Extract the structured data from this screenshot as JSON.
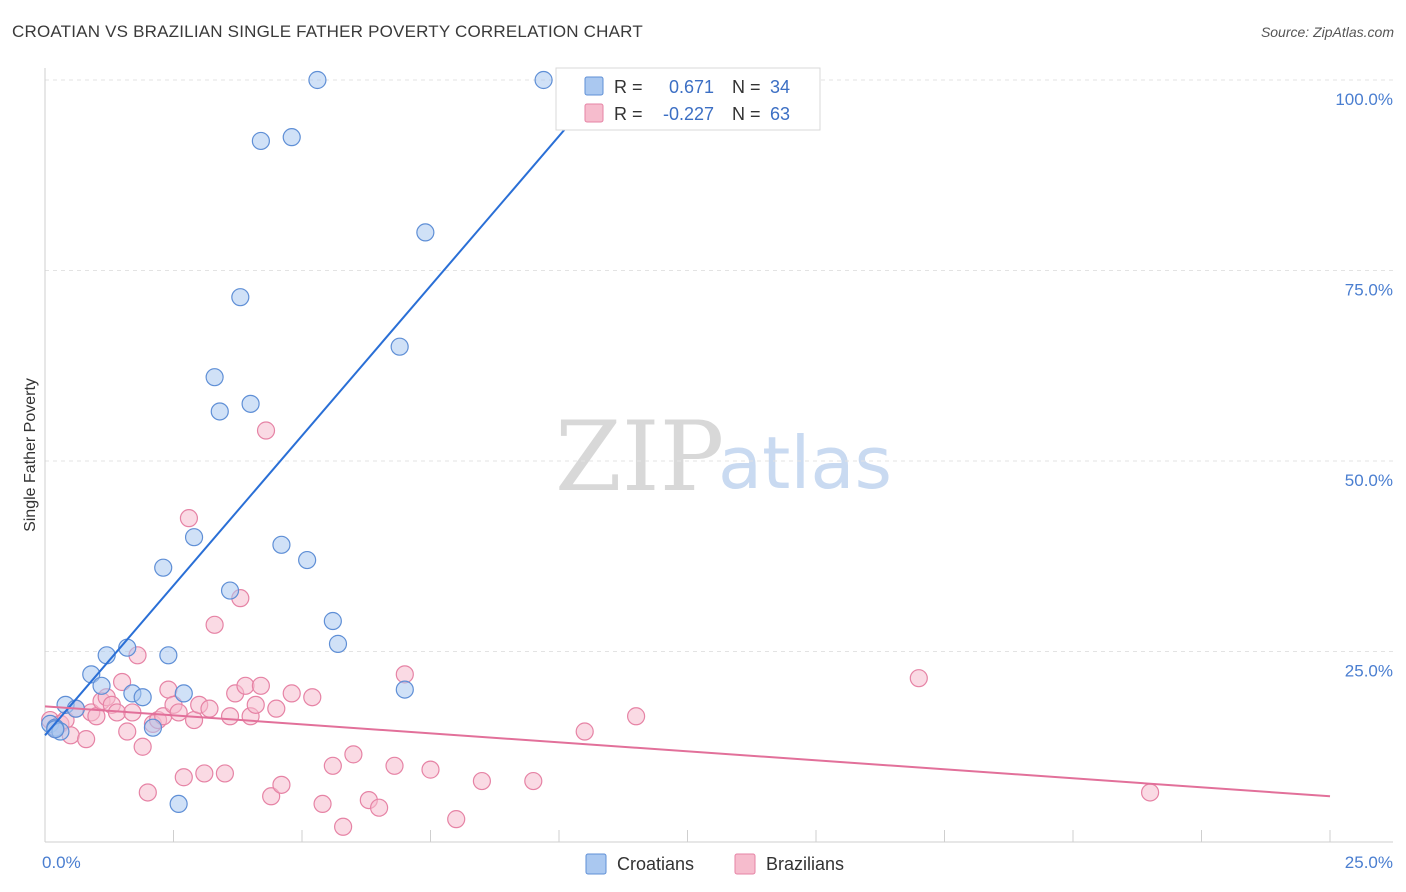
{
  "title": "CROATIAN VS BRAZILIAN SINGLE FATHER POVERTY CORRELATION CHART",
  "source": "Source: ZipAtlas.com",
  "watermark": {
    "zip": "ZIP",
    "atlas": "atlas"
  },
  "colors": {
    "croatians_fill": "#aac8f0",
    "croatians_stroke": "#5f8fd6",
    "croatians_line": "#2a6fd6",
    "brazilians_fill": "#f6bccd",
    "brazilians_stroke": "#e683a5",
    "brazilians_line": "#e2709a",
    "tick_text": "#4a7ed0",
    "grid": "#e3e3e3"
  },
  "legend": {
    "r_label": "R =",
    "n_label": "N =",
    "croatians": {
      "r": "0.671",
      "n": "34"
    },
    "brazilians": {
      "r": "-0.227",
      "n": "63"
    }
  },
  "bottom_legend": {
    "croatians": "Croatians",
    "brazilians": "Brazilians"
  },
  "chart_data": {
    "type": "scatter",
    "title": "CROATIAN VS BRAZILIAN SINGLE FATHER POVERTY CORRELATION CHART",
    "xlabel": "",
    "ylabel": "Single Father Poverty",
    "xlim": [
      0,
      25
    ],
    "ylim": [
      0,
      100
    ],
    "x_tick_labels": [
      "0.0%",
      "25.0%"
    ],
    "y_ticks": [
      25,
      50,
      75,
      100
    ],
    "y_tick_labels": [
      "25.0%",
      "50.0%",
      "75.0%",
      "100.0%"
    ],
    "grid": true,
    "series": [
      {
        "name": "Croatians",
        "r": 0.671,
        "n": 34,
        "trend": {
          "x0": 0,
          "y0": 14,
          "x1": 10.3,
          "y1": 95
        },
        "points": [
          [
            0.1,
            15.5
          ],
          [
            0.2,
            15.0
          ],
          [
            0.3,
            14.5
          ],
          [
            0.4,
            18.0
          ],
          [
            0.6,
            17.5
          ],
          [
            0.9,
            22.0
          ],
          [
            1.1,
            20.5
          ],
          [
            1.2,
            24.5
          ],
          [
            1.6,
            25.5
          ],
          [
            1.7,
            19.5
          ],
          [
            1.9,
            19.0
          ],
          [
            2.1,
            15.0
          ],
          [
            2.3,
            36.0
          ],
          [
            2.4,
            24.5
          ],
          [
            2.6,
            5.0
          ],
          [
            2.7,
            19.5
          ],
          [
            2.9,
            40.0
          ],
          [
            3.3,
            61.0
          ],
          [
            3.4,
            56.5
          ],
          [
            3.6,
            33.0
          ],
          [
            3.8,
            71.5
          ],
          [
            4.0,
            57.5
          ],
          [
            4.2,
            92.0
          ],
          [
            4.6,
            39.0
          ],
          [
            4.8,
            92.5
          ],
          [
            5.1,
            37.0
          ],
          [
            5.3,
            100.0
          ],
          [
            5.6,
            29.0
          ],
          [
            5.7,
            26.0
          ],
          [
            6.9,
            65.0
          ],
          [
            7.0,
            20.0
          ],
          [
            7.4,
            80.0
          ],
          [
            9.7,
            100.0
          ],
          [
            0.2,
            14.8
          ]
        ]
      },
      {
        "name": "Brazilians",
        "r": -0.227,
        "n": 63,
        "trend": {
          "x0": 0,
          "y0": 17.8,
          "x1": 25,
          "y1": 6
        },
        "points": [
          [
            0.1,
            16.0
          ],
          [
            0.2,
            15.0
          ],
          [
            0.3,
            15.5
          ],
          [
            0.4,
            16.0
          ],
          [
            0.5,
            14.0
          ],
          [
            0.6,
            17.5
          ],
          [
            0.8,
            13.5
          ],
          [
            0.9,
            17.0
          ],
          [
            1.0,
            16.5
          ],
          [
            1.1,
            18.5
          ],
          [
            1.2,
            19.0
          ],
          [
            1.3,
            18.0
          ],
          [
            1.4,
            17.0
          ],
          [
            1.5,
            21.0
          ],
          [
            1.6,
            14.5
          ],
          [
            1.7,
            17.0
          ],
          [
            1.8,
            24.5
          ],
          [
            1.9,
            12.5
          ],
          [
            2.0,
            6.5
          ],
          [
            2.1,
            15.5
          ],
          [
            2.2,
            16.0
          ],
          [
            2.3,
            16.5
          ],
          [
            2.4,
            20.0
          ],
          [
            2.5,
            18.0
          ],
          [
            2.6,
            17.0
          ],
          [
            2.7,
            8.5
          ],
          [
            2.8,
            42.5
          ],
          [
            2.9,
            16.0
          ],
          [
            3.0,
            18.0
          ],
          [
            3.1,
            9.0
          ],
          [
            3.2,
            17.5
          ],
          [
            3.3,
            28.5
          ],
          [
            3.5,
            9.0
          ],
          [
            3.6,
            16.5
          ],
          [
            3.7,
            19.5
          ],
          [
            3.8,
            32.0
          ],
          [
            3.9,
            20.5
          ],
          [
            4.0,
            16.5
          ],
          [
            4.1,
            18.0
          ],
          [
            4.2,
            20.5
          ],
          [
            4.3,
            54.0
          ],
          [
            4.4,
            6.0
          ],
          [
            4.5,
            17.5
          ],
          [
            4.6,
            7.5
          ],
          [
            4.8,
            19.5
          ],
          [
            5.2,
            19.0
          ],
          [
            5.4,
            5.0
          ],
          [
            5.6,
            10.0
          ],
          [
            5.8,
            2.0
          ],
          [
            6.0,
            11.5
          ],
          [
            6.3,
            5.5
          ],
          [
            6.5,
            4.5
          ],
          [
            6.8,
            10.0
          ],
          [
            7.0,
            22.0
          ],
          [
            7.5,
            9.5
          ],
          [
            8.0,
            3.0
          ],
          [
            8.5,
            8.0
          ],
          [
            9.5,
            8.0
          ],
          [
            10.5,
            14.5
          ],
          [
            11.5,
            16.5
          ],
          [
            17.0,
            21.5
          ],
          [
            21.5,
            6.5
          ],
          [
            0.2,
            14.8
          ]
        ]
      }
    ]
  }
}
